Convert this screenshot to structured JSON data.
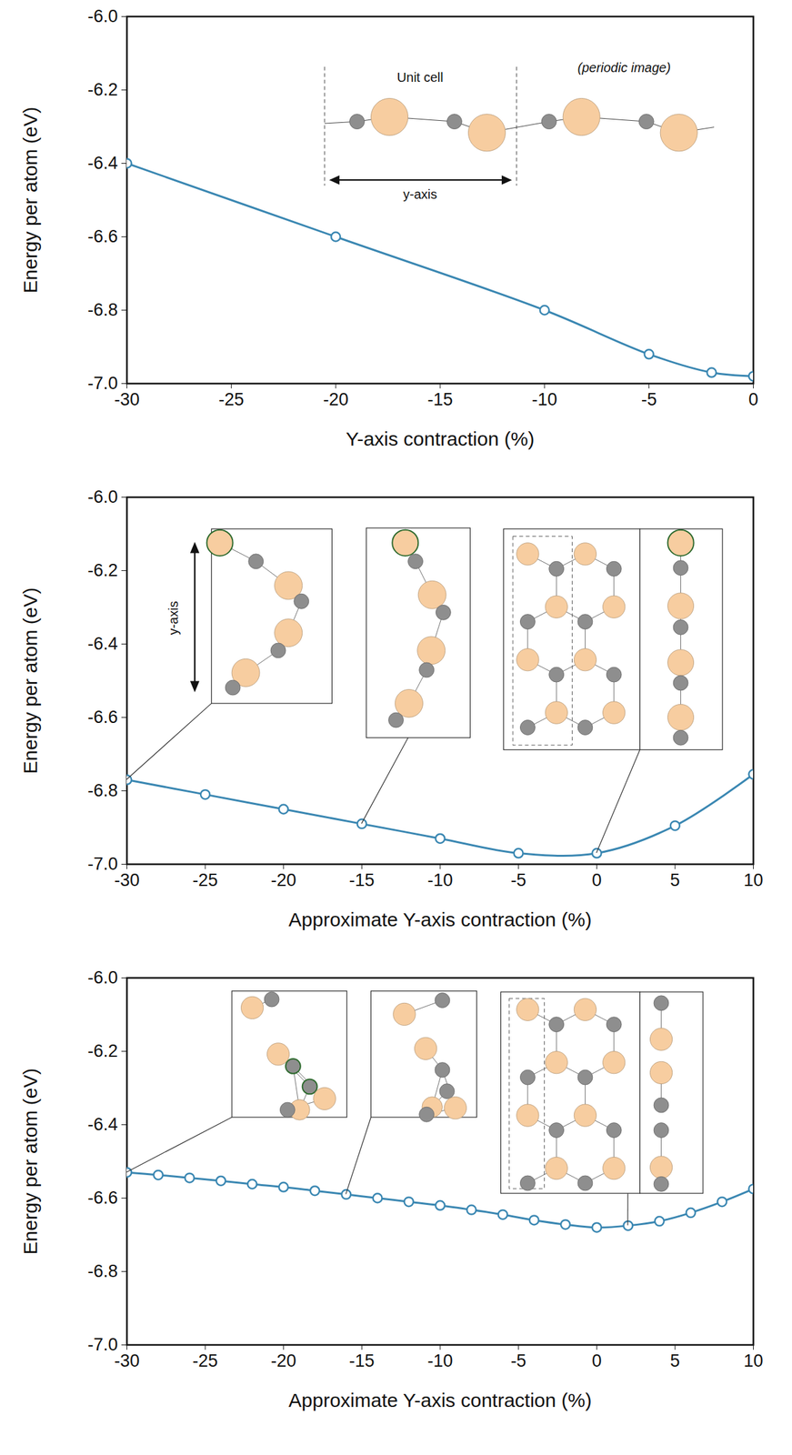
{
  "chart_data": [
    {
      "type": "line",
      "x_label": "Y-axis contraction (%)",
      "y_label": "Energy per atom (eV)",
      "x": [
        -30,
        -20,
        -10,
        -5,
        -2,
        0
      ],
      "values": [
        -6.4,
        -6.6,
        -6.8,
        -6.92,
        -6.97,
        -6.98
      ],
      "color": "#3a87b2",
      "marker": "circle_open",
      "line_style": "solid",
      "xlim": [
        -30,
        0
      ],
      "xticks": [
        -30,
        -25,
        -20,
        -15,
        -10,
        -5,
        0
      ],
      "ylim": [
        -7.0,
        -6.0
      ],
      "yticks": [
        {
          "value": -7.0,
          "label": "-7.0"
        },
        -6.8,
        -6.6,
        -6.4,
        -6.2,
        {
          "value": -6.0,
          "label": "-6.0"
        }
      ],
      "annotations": [
        "Unit cell",
        "(periodic image)",
        "y-axis"
      ]
    },
    {
      "type": "line",
      "x_label": "Approximate Y-axis contraction (%)",
      "y_label": "Energy per atom (eV)",
      "x": [
        -30,
        -25,
        -20,
        -15,
        -10,
        -5,
        0,
        5,
        10
      ],
      "values": [
        -6.77,
        -6.81,
        -6.85,
        -6.89,
        -6.93,
        -6.97,
        -6.97,
        -6.895,
        -6.755
      ],
      "color": "#3a87b2",
      "marker": "circle_open",
      "line_style": "solid",
      "xlim": [
        -30,
        10
      ],
      "xticks": [
        -30,
        -25,
        -20,
        -15,
        -10,
        -5,
        0,
        5,
        10
      ],
      "ylim": [
        -7.0,
        -6.0
      ],
      "yticks": [
        {
          "value": -7.0,
          "label": "-7.0"
        },
        -6.8,
        -6.6,
        -6.4,
        -6.2,
        {
          "value": -6.0,
          "label": "-6.0"
        }
      ],
      "annotations": [
        "y-axis"
      ]
    },
    {
      "type": "line",
      "x_label": "Approximate Y-axis contraction (%)",
      "y_label": "Energy per atom (eV)",
      "x": [
        -30,
        -28,
        -26,
        -24,
        -22,
        -20,
        -18,
        -16,
        -14,
        -12,
        -10,
        -8,
        -6,
        -4,
        -2,
        0,
        2,
        4,
        6,
        8,
        10
      ],
      "values": [
        -6.53,
        -6.537,
        -6.545,
        -6.553,
        -6.562,
        -6.57,
        -6.58,
        -6.59,
        -6.6,
        -6.61,
        -6.62,
        -6.632,
        -6.645,
        -6.66,
        -6.672,
        -6.68,
        -6.675,
        -6.663,
        -6.64,
        -6.61,
        -6.575
      ],
      "color": "#3a87b2",
      "marker": "circle_open",
      "line_style": "solid",
      "xlim": [
        -30,
        10
      ],
      "xticks": [
        -30,
        -25,
        -20,
        -15,
        -10,
        -5,
        0,
        5,
        10
      ],
      "ylim": [
        -7.0,
        -6.0
      ],
      "yticks": [
        {
          "value": -7.0,
          "label": "-7.0"
        },
        -6.8,
        -6.6,
        -6.4,
        -6.2,
        {
          "value": -6.0,
          "label": "-6.0"
        }
      ]
    }
  ]
}
